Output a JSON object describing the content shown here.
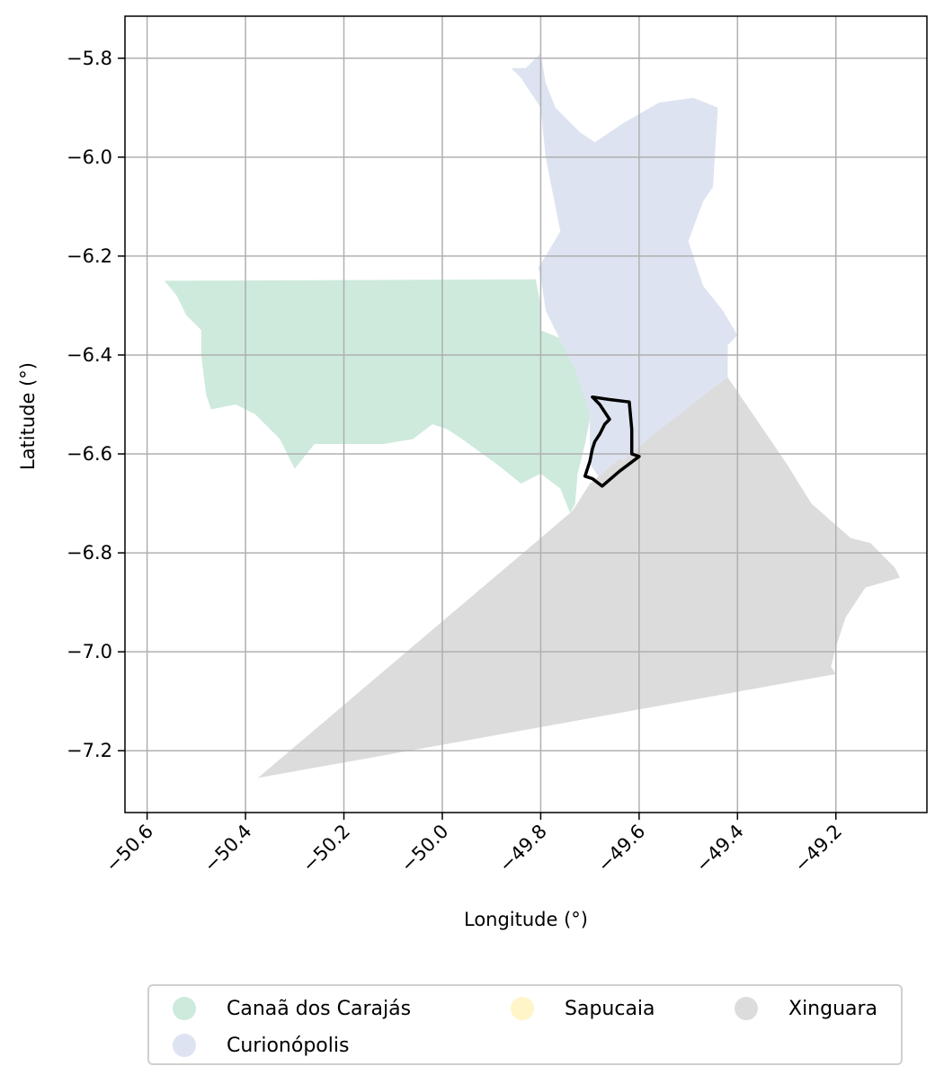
{
  "chart_data": {
    "type": "map",
    "xlabel": "Longitude (°)",
    "ylabel": "Latitude (°)",
    "xlim": [
      -50.645,
      -49.015
    ],
    "ylim": [
      -7.325,
      -5.715
    ],
    "xticks": [
      -50.6,
      -50.4,
      -50.2,
      -50.0,
      -49.8,
      -49.6,
      -49.4,
      -49.2
    ],
    "xtick_labels": [
      "−50.6",
      "−50.4",
      "−50.2",
      "−50.0",
      "−49.8",
      "−49.6",
      "−49.4",
      "−49.2"
    ],
    "yticks": [
      -5.8,
      -6.0,
      -6.2,
      -6.4,
      -6.6,
      -6.8,
      -7.0,
      -7.2
    ],
    "ytick_labels": [
      "−5.8",
      "−6.0",
      "−6.2",
      "−6.4",
      "−6.6",
      "−6.8",
      "−7.0",
      "−7.2"
    ],
    "grid": true,
    "legend_position": "bottom",
    "regions": [
      {
        "name": "Canaã dos Carajás",
        "color": "#cdeadd",
        "polygon": [
          [
            -50.565,
            -6.25
          ],
          [
            -49.81,
            -6.247
          ],
          [
            -49.8,
            -6.3
          ],
          [
            -49.8,
            -6.35
          ],
          [
            -49.75,
            -6.37
          ],
          [
            -49.7,
            -6.43
          ],
          [
            -49.7,
            -6.53
          ],
          [
            -49.71,
            -6.58
          ],
          [
            -49.725,
            -6.64
          ],
          [
            -49.73,
            -6.7
          ],
          [
            -49.74,
            -6.72
          ],
          [
            -49.76,
            -6.67
          ],
          [
            -49.8,
            -6.64
          ],
          [
            -49.84,
            -6.66
          ],
          [
            -49.89,
            -6.62
          ],
          [
            -49.96,
            -6.57
          ],
          [
            -49.99,
            -6.55
          ],
          [
            -50.02,
            -6.54
          ],
          [
            -50.06,
            -6.57
          ],
          [
            -50.12,
            -6.58
          ],
          [
            -50.16,
            -6.58
          ],
          [
            -50.2,
            -6.58
          ],
          [
            -50.26,
            -6.58
          ],
          [
            -50.3,
            -6.63
          ],
          [
            -50.33,
            -6.57
          ],
          [
            -50.38,
            -6.52
          ],
          [
            -50.42,
            -6.5
          ],
          [
            -50.47,
            -6.51
          ],
          [
            -50.48,
            -6.48
          ],
          [
            -50.49,
            -6.4
          ],
          [
            -50.49,
            -6.35
          ],
          [
            -50.52,
            -6.32
          ],
          [
            -50.54,
            -6.28
          ]
        ]
      },
      {
        "name": "Curionópolis",
        "color": "#dee3f1",
        "polygon": [
          [
            -49.805,
            -6.224
          ],
          [
            -49.8,
            -6.24
          ],
          [
            -49.79,
            -6.31
          ],
          [
            -49.76,
            -6.37
          ],
          [
            -49.73,
            -6.43
          ],
          [
            -49.7,
            -6.52
          ],
          [
            -49.7,
            -6.62
          ],
          [
            -49.68,
            -6.65
          ],
          [
            -49.63,
            -6.64
          ],
          [
            -49.57,
            -6.61
          ],
          [
            -49.5,
            -6.53
          ],
          [
            -49.42,
            -6.45
          ],
          [
            -49.42,
            -6.38
          ],
          [
            -49.4,
            -6.36
          ],
          [
            -49.43,
            -6.31
          ],
          [
            -49.47,
            -6.26
          ],
          [
            -49.5,
            -6.17
          ],
          [
            -49.47,
            -6.09
          ],
          [
            -49.45,
            -6.06
          ],
          [
            -49.44,
            -5.9
          ],
          [
            -49.49,
            -5.88
          ],
          [
            -49.56,
            -5.89
          ],
          [
            -49.63,
            -5.93
          ],
          [
            -49.69,
            -5.97
          ],
          [
            -49.72,
            -5.95
          ],
          [
            -49.77,
            -5.9
          ],
          [
            -49.79,
            -5.85
          ],
          [
            -49.8,
            -5.79
          ],
          [
            -49.83,
            -5.82
          ],
          [
            -49.86,
            -5.82
          ],
          [
            -49.84,
            -5.84
          ],
          [
            -49.8,
            -5.9
          ],
          [
            -49.79,
            -6.0
          ],
          [
            -49.77,
            -6.1
          ],
          [
            -49.76,
            -6.15
          ],
          [
            -49.79,
            -6.2
          ]
        ]
      },
      {
        "name": "Sapucaia",
        "color": "#fff5c8",
        "polygon": [
          [
            -49.735,
            -6.715
          ],
          [
            -49.7,
            -6.66
          ],
          [
            -49.64,
            -6.61
          ],
          [
            -49.61,
            -6.62
          ],
          [
            -49.59,
            -6.66
          ],
          [
            -49.58,
            -6.7
          ],
          [
            -49.56,
            -6.7
          ],
          [
            -49.51,
            -6.72
          ],
          [
            -49.46,
            -6.74
          ],
          [
            -49.41,
            -6.72
          ],
          [
            -49.345,
            -6.73
          ],
          [
            -49.345,
            -6.83
          ],
          [
            -49.38,
            -6.83
          ],
          [
            -49.41,
            -6.86
          ],
          [
            -49.4,
            -6.91
          ],
          [
            -49.39,
            -7.0
          ],
          [
            -49.42,
            -7.0
          ],
          [
            -49.48,
            -7.01
          ],
          [
            -49.53,
            -7.0
          ],
          [
            -49.58,
            -7.01
          ],
          [
            -49.62,
            -7.01
          ],
          [
            -49.68,
            -7.03
          ],
          [
            -49.71,
            -7.02
          ],
          [
            -49.735,
            -7.02
          ]
        ]
      },
      {
        "name": "Xinguara",
        "color": "#dcdcdc",
        "polygon": [
          [
            -50.375,
            -7.255
          ],
          [
            -49.2,
            -7.045
          ],
          [
            -49.21,
            -7.03
          ],
          [
            -49.2,
            -6.99
          ],
          [
            -49.18,
            -6.93
          ],
          [
            -49.14,
            -6.87
          ],
          [
            -49.07,
            -6.85
          ],
          [
            -49.08,
            -6.83
          ],
          [
            -49.13,
            -6.78
          ],
          [
            -49.17,
            -6.77
          ],
          [
            -49.25,
            -6.7
          ],
          [
            -49.3,
            -6.62
          ],
          [
            -49.42,
            -6.445
          ],
          [
            -49.57,
            -6.56
          ],
          [
            -49.64,
            -6.62
          ],
          [
            -49.735,
            -6.715
          ],
          [
            -49.735,
            -7.02
          ],
          [
            -49.68,
            -7.03
          ],
          [
            -49.62,
            -7.01
          ],
          [
            -49.58,
            -7.01
          ],
          [
            -49.53,
            -7.0
          ],
          [
            -49.48,
            -7.01
          ],
          [
            -49.42,
            -7.0
          ],
          [
            -49.39,
            -7.0
          ],
          [
            -49.4,
            -6.91
          ],
          [
            -49.41,
            -6.86
          ],
          [
            -49.38,
            -6.83
          ],
          [
            -49.345,
            -6.83
          ],
          [
            -49.345,
            -6.73
          ],
          [
            -49.41,
            -6.72
          ],
          [
            -49.46,
            -6.74
          ],
          [
            -49.51,
            -6.72
          ],
          [
            -49.56,
            -6.7
          ],
          [
            -49.58,
            -6.7
          ],
          [
            -49.59,
            -6.66
          ],
          [
            -49.61,
            -6.62
          ],
          [
            -49.64,
            -6.61
          ],
          [
            -49.7,
            -6.66
          ],
          [
            -49.735,
            -6.715
          ]
        ]
      }
    ],
    "highlight_outline": {
      "color": "#000000",
      "polygon": [
        [
          -49.695,
          -6.485
        ],
        [
          -49.66,
          -6.49
        ],
        [
          -49.62,
          -6.495
        ],
        [
          -49.615,
          -6.55
        ],
        [
          -49.615,
          -6.6
        ],
        [
          -49.6,
          -6.605
        ],
        [
          -49.64,
          -6.635
        ],
        [
          -49.675,
          -6.665
        ],
        [
          -49.695,
          -6.65
        ],
        [
          -49.71,
          -6.645
        ],
        [
          -49.705,
          -6.63
        ],
        [
          -49.7,
          -6.615
        ],
        [
          -49.695,
          -6.59
        ],
        [
          -49.69,
          -6.575
        ],
        [
          -49.68,
          -6.56
        ],
        [
          -49.67,
          -6.54
        ],
        [
          -49.66,
          -6.53
        ],
        [
          -49.68,
          -6.5
        ]
      ]
    }
  },
  "legend": {
    "items": [
      {
        "label": "Canaã dos Carajás",
        "color": "#cdeadd"
      },
      {
        "label": "Curionópolis",
        "color": "#dee3f1"
      },
      {
        "label": "Sapucaia",
        "color": "#fff5c8"
      },
      {
        "label": "Xinguara",
        "color": "#dcdcdc"
      }
    ]
  }
}
